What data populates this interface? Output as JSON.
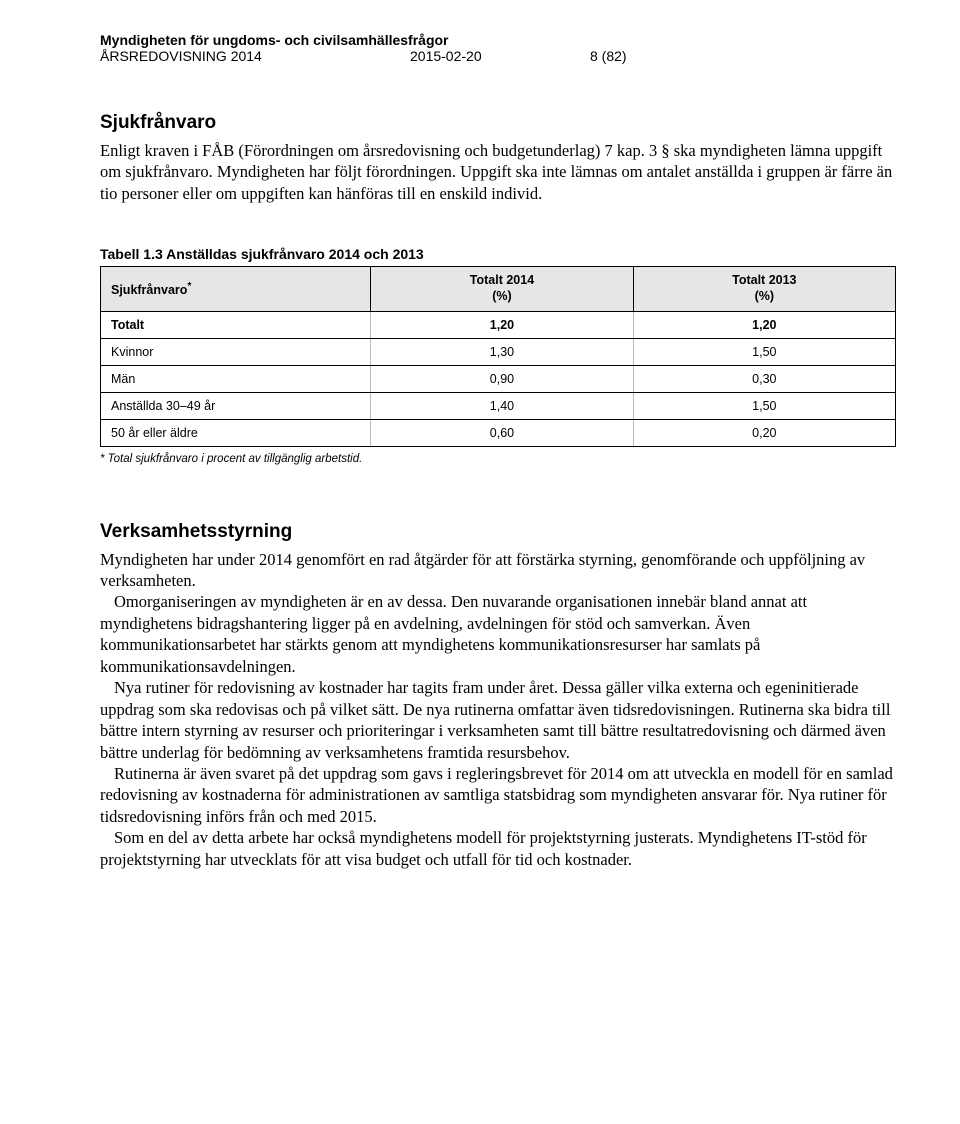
{
  "header": {
    "org": "Myndigheten för ungdoms- och civilsamhällesfrågor",
    "left": "ÅRSREDOVISNING 2014",
    "center": "2015-02-20",
    "right": "8 (82)"
  },
  "section1": {
    "title": "Sjukfrånvaro",
    "para": "Enligt kraven i FÅB (Förordningen om årsredovisning och budgetunderlag) 7 kap. 3 § ska myndigheten lämna uppgift om sjukfrånvaro. Myndigheten har följt förordningen. Uppgift ska inte lämnas om antalet anställda i gruppen är färre än tio personer eller om uppgiften kan hänföras till en enskild individ."
  },
  "table": {
    "caption": "Tabell 1.3 Anställdas sjukfrånvaro 2014 och 2013",
    "columns": [
      {
        "label_top": "Sjukfrånvaro",
        "label_bottom": "*",
        "width": "34%"
      },
      {
        "label_top": "Totalt 2014",
        "label_bottom": "(%)",
        "width": "33%"
      },
      {
        "label_top": "Totalt 2013",
        "label_bottom": "(%)",
        "width": "33%"
      }
    ],
    "rows": [
      {
        "label": "Totalt",
        "c2014": "1,20",
        "c2013": "1,20",
        "bold": true
      },
      {
        "label": "Kvinnor",
        "c2014": "1,30",
        "c2013": "1,50",
        "bold": false
      },
      {
        "label": "Män",
        "c2014": "0,90",
        "c2013": "0,30",
        "bold": false
      },
      {
        "label": "Anställda 30–49 år",
        "c2014": "1,40",
        "c2013": "1,50",
        "bold": false
      },
      {
        "label": "50 år eller äldre",
        "c2014": "0,60",
        "c2013": "0,20",
        "bold": false
      }
    ],
    "footnote": "* Total sjukfrånvaro i procent av tillgänglig arbetstid."
  },
  "section2": {
    "title": "Verksamhetsstyrning",
    "p1": "Myndigheten har under 2014 genomfört en rad åtgärder för att förstärka styrning, genomförande och uppföljning av verksamheten.",
    "p2": "Omorganiseringen av myndigheten är en av dessa. Den nuvarande organisationen innebär bland annat att myndighetens bidragshantering ligger på en avdelning, avdelningen för stöd och samverkan. Även kommunikationsarbetet har stärkts genom att myndighetens kommunikationsresurser har samlats på kommunikationsavdelningen.",
    "p3": "Nya rutiner för redovisning av kostnader har tagits fram under året. Dessa gäller vilka externa och egeninitierade uppdrag som ska redovisas och på vilket sätt. De nya rutinerna omfattar även tidsredovisningen. Rutinerna ska bidra till bättre intern styrning av resurser och prioriteringar i verksamheten samt till bättre resultatredovisning och därmed även bättre underlag för bedömning av verksamhetens framtida resursbehov.",
    "p4": "Rutinerna är även svaret på det uppdrag som gavs i regleringsbrevet för 2014 om att utveckla en modell för en samlad redovisning av kostnaderna för administrationen av samtliga statsbidrag som myndigheten ansvarar för. Nya rutiner för tidsredovisning införs från och med 2015.",
    "p5": "Som en del av detta arbete har också myndighetens modell för projektstyrning justerats. Myndighetens IT-stöd för projektstyrning har utvecklats för att visa budget och utfall för tid och kostnader."
  }
}
